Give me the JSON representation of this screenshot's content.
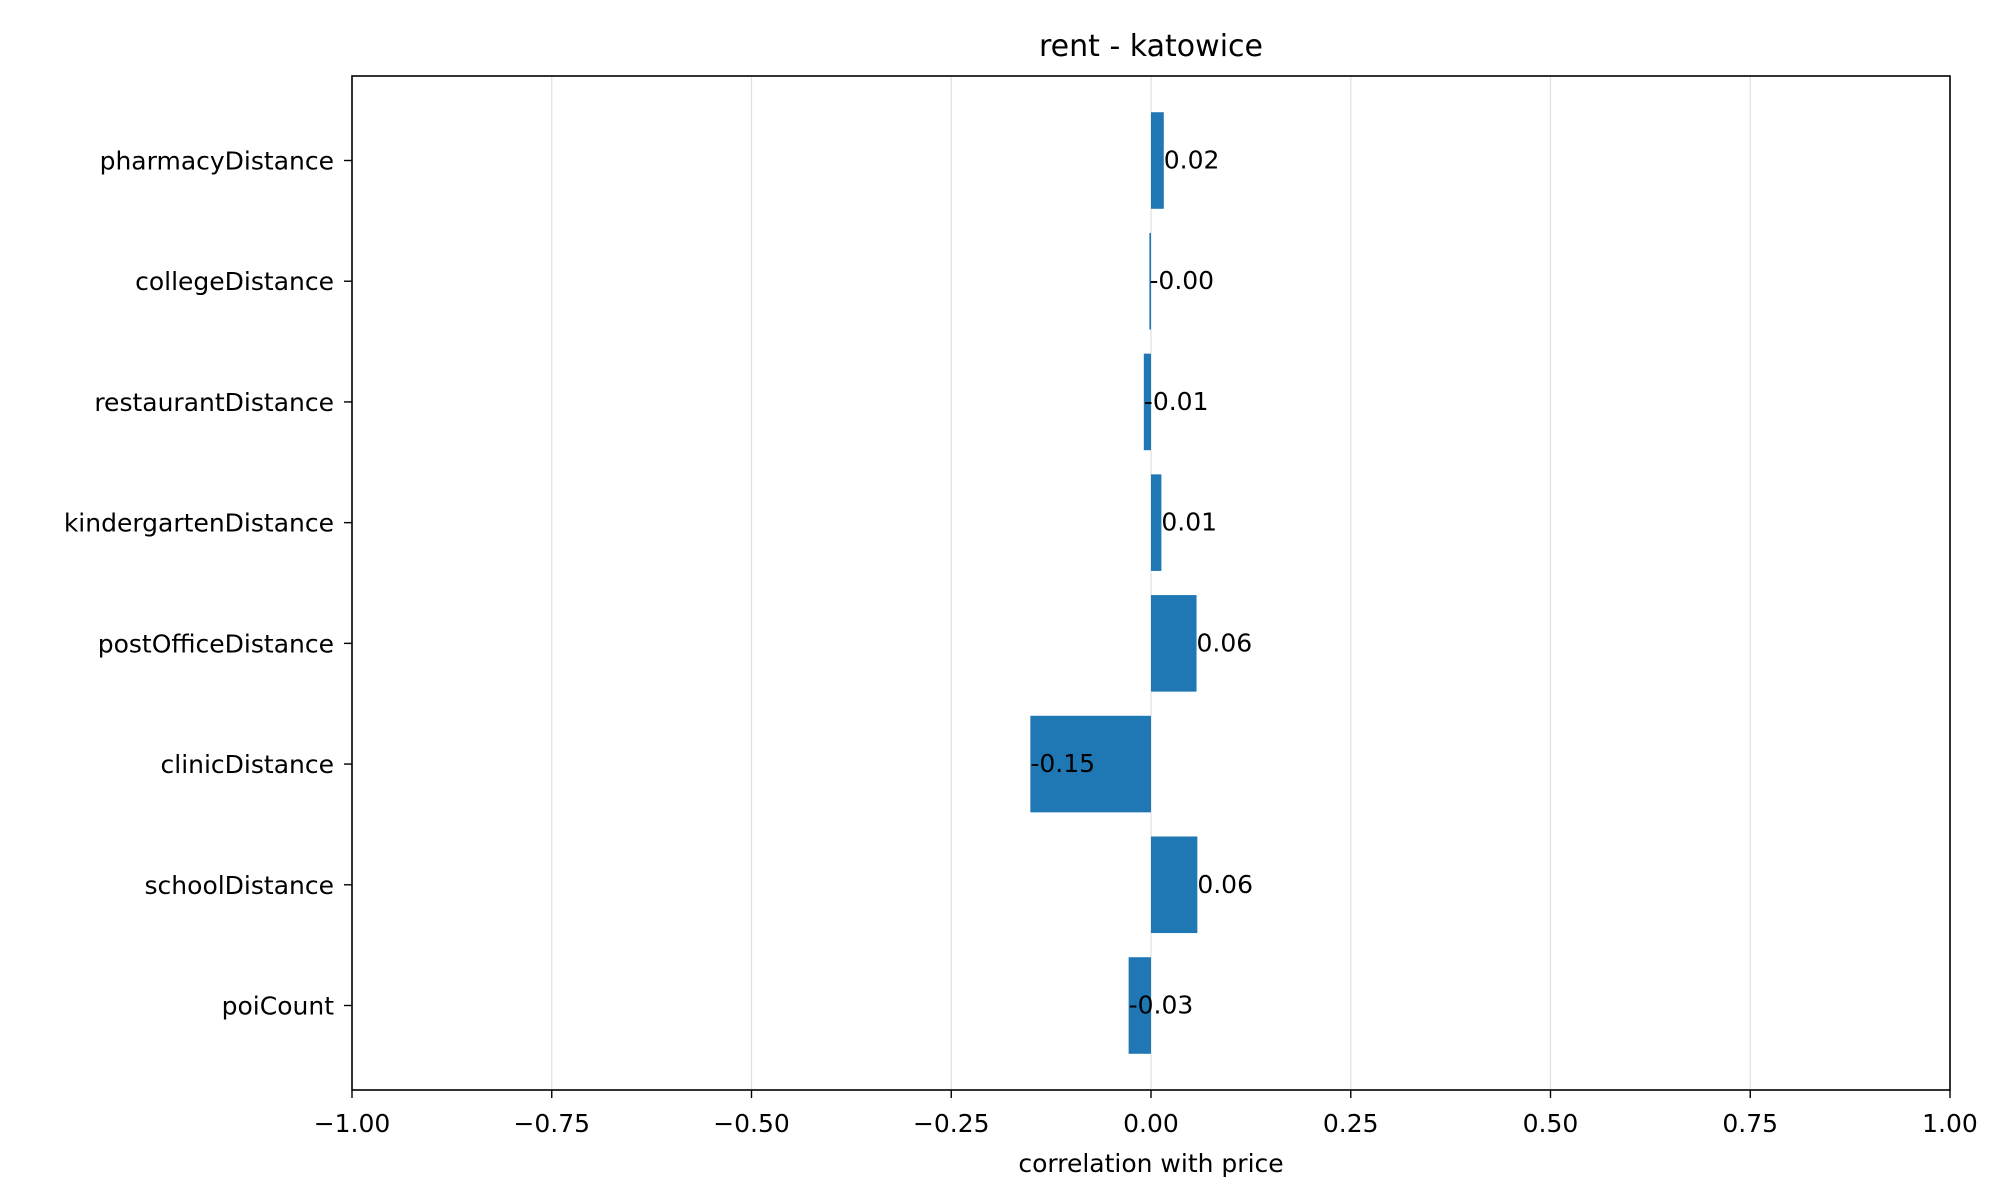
{
  "chart_data": {
    "type": "bar",
    "orientation": "horizontal",
    "title": "rent - katowice",
    "xlabel": "correlation with price",
    "ylabel": "",
    "xlim": [
      -1.0,
      1.0
    ],
    "xticks": [
      -1.0,
      -0.75,
      -0.5,
      -0.25,
      0.0,
      0.25,
      0.5,
      0.75,
      1.0
    ],
    "xtick_labels": [
      "−1.00",
      "−0.75",
      "−0.50",
      "−0.25",
      "0.00",
      "0.25",
      "0.50",
      "0.75",
      "1.00"
    ],
    "grid": "vertical",
    "bar_color": "#1f77b4",
    "grid_color": "#e0e0e0",
    "categories": [
      "pharmacyDistance",
      "collegeDistance",
      "restaurantDistance",
      "kindergartenDistance",
      "postOfficeDistance",
      "clinicDistance",
      "schoolDistance",
      "poiCount"
    ],
    "values": [
      0.016,
      -0.002,
      -0.009,
      0.013,
      0.057,
      -0.151,
      0.058,
      -0.028
    ],
    "value_labels": [
      "0.02",
      "-0.00",
      "-0.01",
      "0.01",
      "0.06",
      "-0.15",
      "0.06",
      "-0.03"
    ]
  }
}
